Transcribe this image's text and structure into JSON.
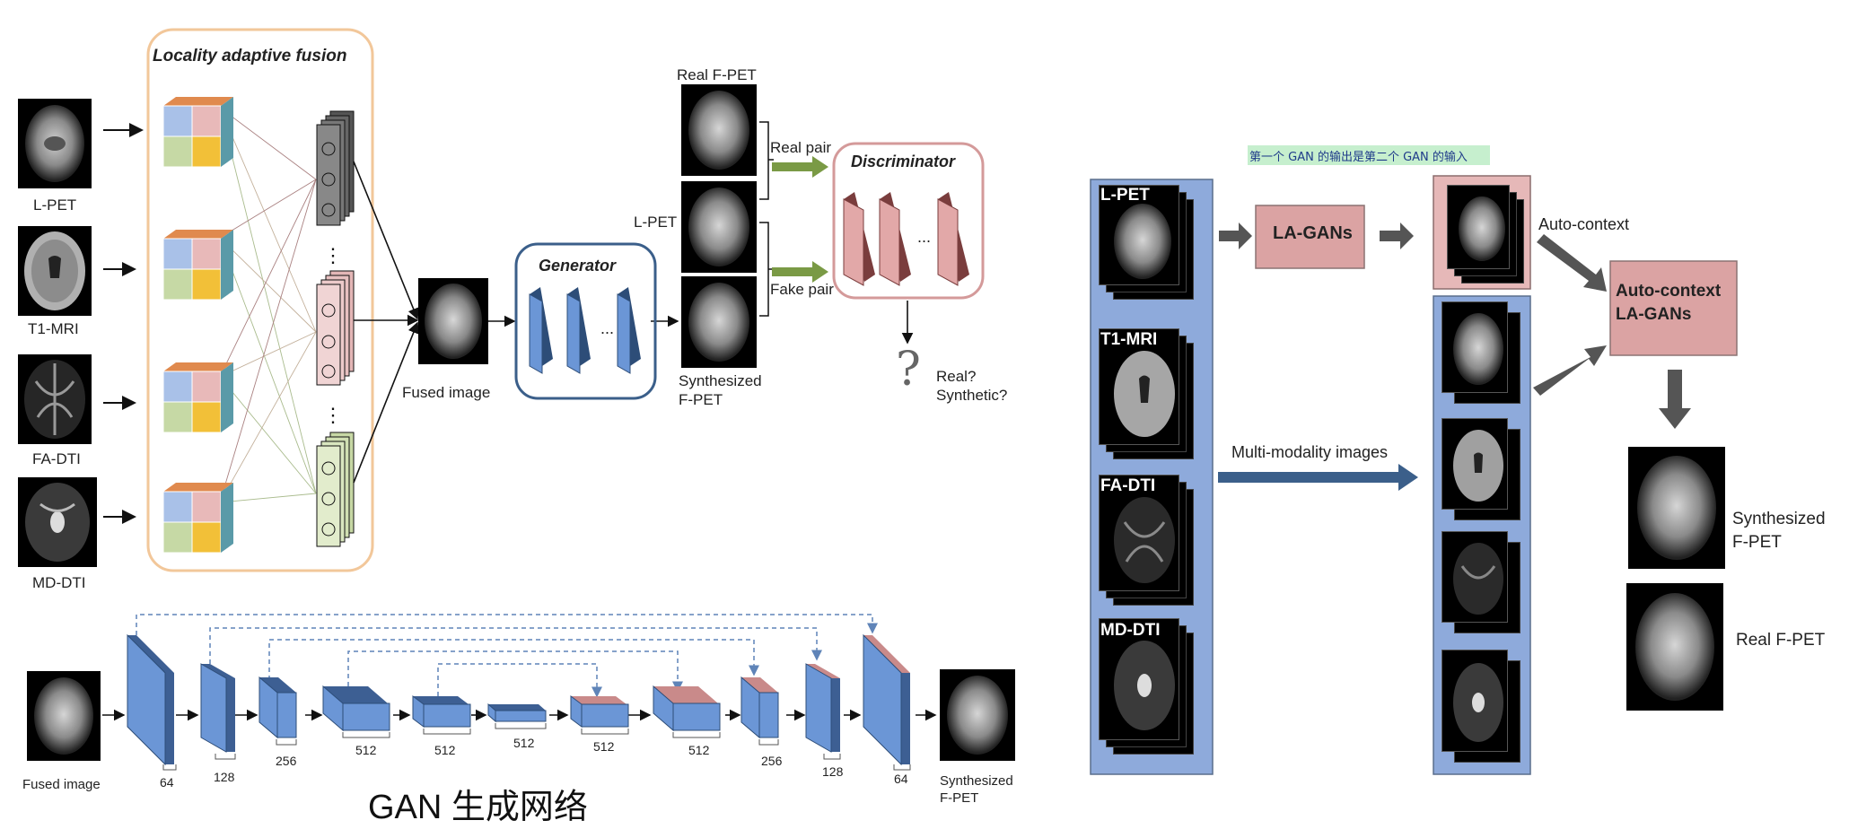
{
  "left_top": {
    "fusion_title": "Locality adaptive fusion",
    "inputs": [
      "L-PET",
      "T1-MRI",
      "FA-DTI",
      "MD-DTI"
    ],
    "fused_label": "Fused image",
    "generator_label": "Generator",
    "discriminator_label": "Discriminator",
    "real_fpet_label": "Real F-PET",
    "lpet_label": "L-PET",
    "synth_label_line1": "Synthesized",
    "synth_label_line2": "F-PET",
    "real_pair_label": "Real pair",
    "fake_pair_label": "Fake pair",
    "question_mark": "?",
    "decision_line1": "Real?",
    "decision_line2": "Synthetic?",
    "dots": "..."
  },
  "left_bottom": {
    "input_label": "Fused image",
    "output_label_line1": "Synthesized",
    "output_label_line2": "F-PET",
    "channel_labels": [
      "64",
      "128",
      "256",
      "512",
      "512",
      "512",
      "512",
      "512",
      "256",
      "128",
      "64"
    ],
    "caption": "GAN 生成网络"
  },
  "right": {
    "note": "第一个 GAN 的输出是第二个 GAN 的输入",
    "modalities": [
      "L-PET",
      "T1-MRI",
      "FA-DTI",
      "MD-DTI"
    ],
    "la_gans_label": "LA-GANs",
    "auto_context_label": "Auto-context",
    "ac_box_line1": "Auto-context",
    "ac_box_line2": "LA-GANs",
    "multi_modality_label": "Multi-modality  images",
    "synth_label_line1": "Synthesized",
    "synth_label_line2": "F-PET",
    "real_label": "Real F-PET"
  },
  "colors": {
    "fusion_border": "#f2c79a",
    "generator_border": "#3b5f8a",
    "discriminator_border": "#d49a9a",
    "unet_blue": "#6b96d6",
    "panel_blue": "#8eaadb",
    "la_box": "#dba3a3",
    "arrow_green": "#7a9a45",
    "arrow_gray": "#555555",
    "arrow_navy": "#3b5f8a",
    "note_bg": "#c6efce"
  }
}
